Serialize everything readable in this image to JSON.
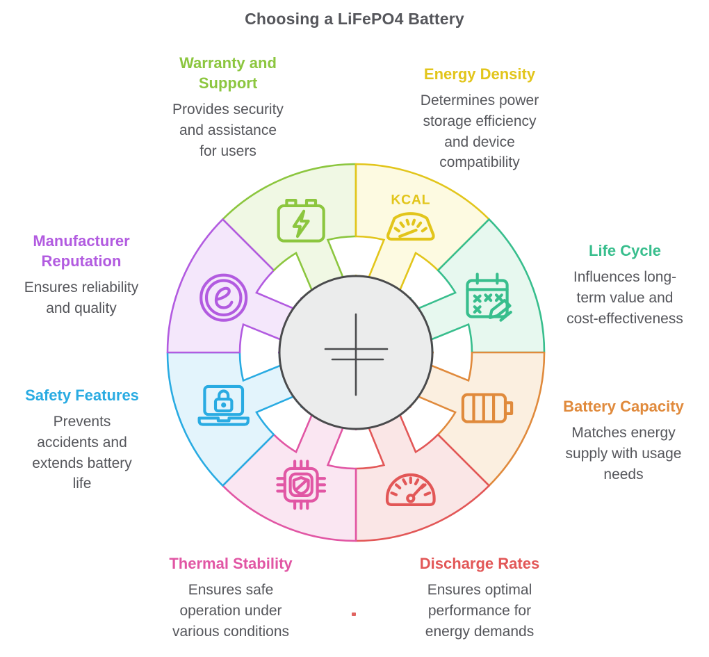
{
  "title": "Choosing a LiFePO4 Battery",
  "center": {
    "symbol": "battery-cell-symbol",
    "fill": "#EBECEC",
    "stroke": "#4A4B4D"
  },
  "wheel": {
    "segments": [
      {
        "id": "warranty-support",
        "label": "Warranty and\nSupport",
        "description": "Provides security\nand assistance\nfor users",
        "color": "#8CC63F",
        "fill": "#F0F8E4",
        "icon": "battery-bolt-icon"
      },
      {
        "id": "energy-density",
        "label": "Energy Density",
        "description": "Determines power\nstorage efficiency\nand device\ncompatibility",
        "color": "#E2C51B",
        "fill": "#FDFAE1",
        "icon": "kcal-gauge-icon",
        "icon_text": "KCAL"
      },
      {
        "id": "life-cycle",
        "label": "Life Cycle",
        "description": "Influences long-\nterm value and\ncost-effectiveness",
        "color": "#38BE8D",
        "fill": "#E7F8EF",
        "icon": "calendar-pencil-icon"
      },
      {
        "id": "battery-capacity",
        "label": "Battery Capacity",
        "description": "Matches energy\nsupply with usage\nneeds",
        "color": "#E08A3C",
        "fill": "#FBEFE0",
        "icon": "battery-level-icon"
      },
      {
        "id": "discharge-rates",
        "label": "Discharge Rates",
        "description": "Ensures optimal\nperformance for\nenergy demands",
        "color": "#E25757",
        "fill": "#FAE6E6",
        "icon": "speedometer-icon"
      },
      {
        "id": "thermal-stability",
        "label": "Thermal Stability",
        "description": "Ensures safe\noperation under\nvarious conditions",
        "color": "#E156A4",
        "fill": "#FAE6F2",
        "icon": "chip-shield-icon"
      },
      {
        "id": "safety-features",
        "label": "Safety Features",
        "description": "Prevents\naccidents and\nextends battery\nlife",
        "color": "#29ABE2",
        "fill": "#E3F4FC",
        "icon": "laptop-lock-icon"
      },
      {
        "id": "manufacturer-reputation",
        "label": "Manufacturer\nReputation",
        "description": "Ensures reliability\nand quality",
        "color": "#B25BE0",
        "fill": "#F4E7FB",
        "icon": "e-mark-icon"
      }
    ]
  },
  "artifacts": {
    "stray_dot_color": "#E0635F"
  }
}
